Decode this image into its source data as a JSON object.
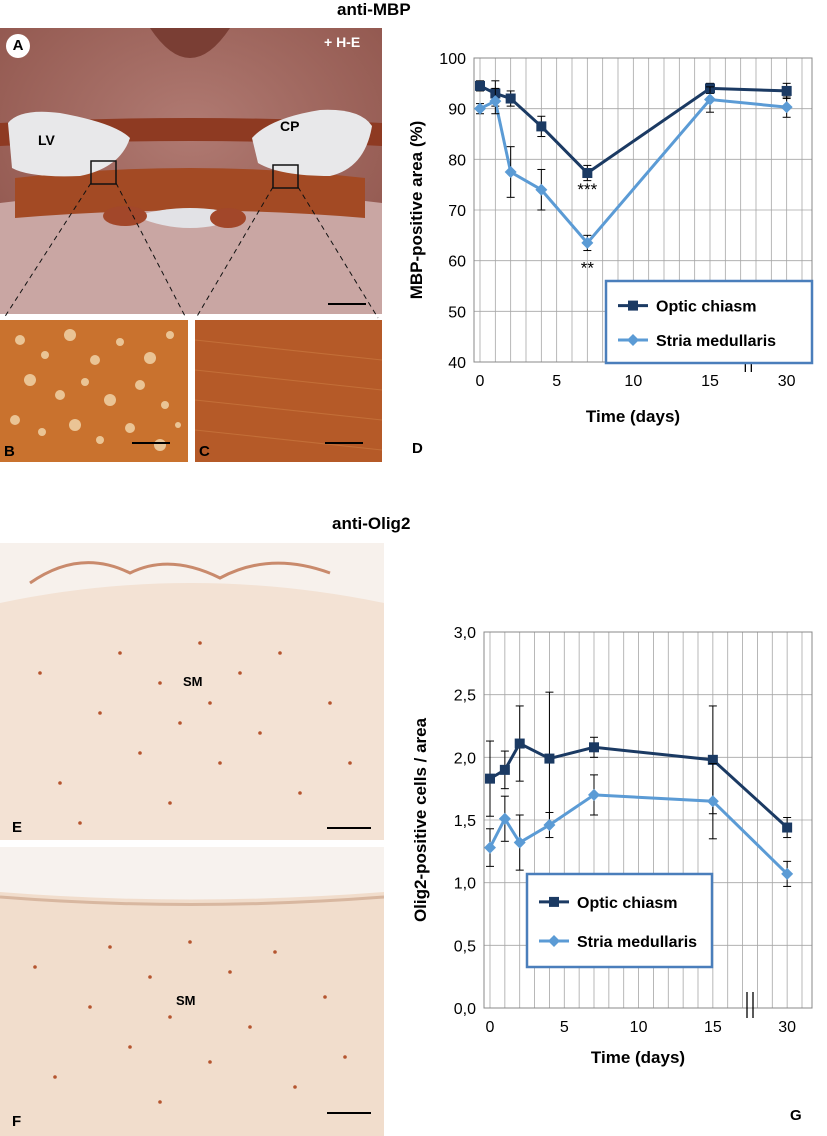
{
  "top_title": "anti-MBP",
  "bottom_title": "anti-Olig2",
  "panels": {
    "A": "A",
    "A_stain": "+ H-E",
    "A_lv": "LV",
    "A_cp": "CP",
    "B": "B",
    "C": "C",
    "D": "D",
    "E": "E",
    "F": "F",
    "G": "G",
    "E_sm": "SM",
    "F_sm": "SM"
  },
  "colors": {
    "optic": "#1b3a63",
    "stria": "#5b9bd5",
    "legend_border": "#4a7ebb",
    "grid": "#a6a6a6"
  },
  "chart_data": [
    {
      "id": "D",
      "type": "line",
      "xlabel": "Time (days)",
      "ylabel": "MBP-positive area (%)",
      "ylim": [
        40,
        100
      ],
      "yticks": [
        "40",
        "50",
        "60",
        "70",
        "80",
        "90",
        "100"
      ],
      "xticks": [
        "0",
        "5",
        "10",
        "15",
        "30"
      ],
      "axis_break": "between 15 and 30",
      "grid": true,
      "legend_position": "bottom-right",
      "series": [
        {
          "name": "Optic chiasm",
          "marker": "square",
          "x": [
            0,
            1,
            2,
            4,
            7,
            15,
            30
          ],
          "y": [
            94.5,
            93.0,
            92.0,
            86.5,
            77.3,
            94.0,
            93.5
          ],
          "err": [
            1.0,
            2.5,
            1.5,
            2.0,
            1.5,
            1.0,
            1.5
          ]
        },
        {
          "name": "Stria medullaris",
          "marker": "diamond",
          "x": [
            0,
            1,
            2,
            4,
            7,
            15,
            30
          ],
          "y": [
            90.0,
            91.5,
            77.5,
            74.0,
            63.5,
            91.8,
            90.3
          ],
          "err": [
            1.0,
            2.5,
            5.0,
            4.0,
            1.5,
            2.5,
            2.0
          ]
        }
      ],
      "annotations": [
        {
          "text": "***",
          "x": 7,
          "y": 74.5
        },
        {
          "text": "**",
          "x": 7,
          "y": 59.0
        }
      ]
    },
    {
      "id": "G",
      "type": "line",
      "xlabel": "Time (days)",
      "ylabel": "Olig2-positive cells / area",
      "ylim": [
        0,
        3
      ],
      "yticks": [
        "0,0",
        "0,5",
        "1,0",
        "1,5",
        "2,0",
        "2,5",
        "3,0"
      ],
      "xticks": [
        "0",
        "5",
        "10",
        "15",
        "30"
      ],
      "axis_break": "between 15 and 30",
      "grid": true,
      "legend_position": "bottom-center",
      "series": [
        {
          "name": "Optic chiasm",
          "marker": "square",
          "x": [
            0,
            1,
            2,
            4,
            7,
            15,
            30
          ],
          "y": [
            1.83,
            1.9,
            2.11,
            1.99,
            2.08,
            1.98,
            1.44
          ],
          "err": [
            0.3,
            0.15,
            0.3,
            0.53,
            0.08,
            0.43,
            0.08
          ]
        },
        {
          "name": "Stria medullaris",
          "marker": "diamond",
          "x": [
            0,
            1,
            2,
            4,
            7,
            15,
            30
          ],
          "y": [
            1.28,
            1.51,
            1.32,
            1.46,
            1.7,
            1.65,
            1.07
          ],
          "err": [
            0.15,
            0.18,
            0.22,
            0.1,
            0.16,
            0.3,
            0.1
          ]
        }
      ]
    }
  ]
}
